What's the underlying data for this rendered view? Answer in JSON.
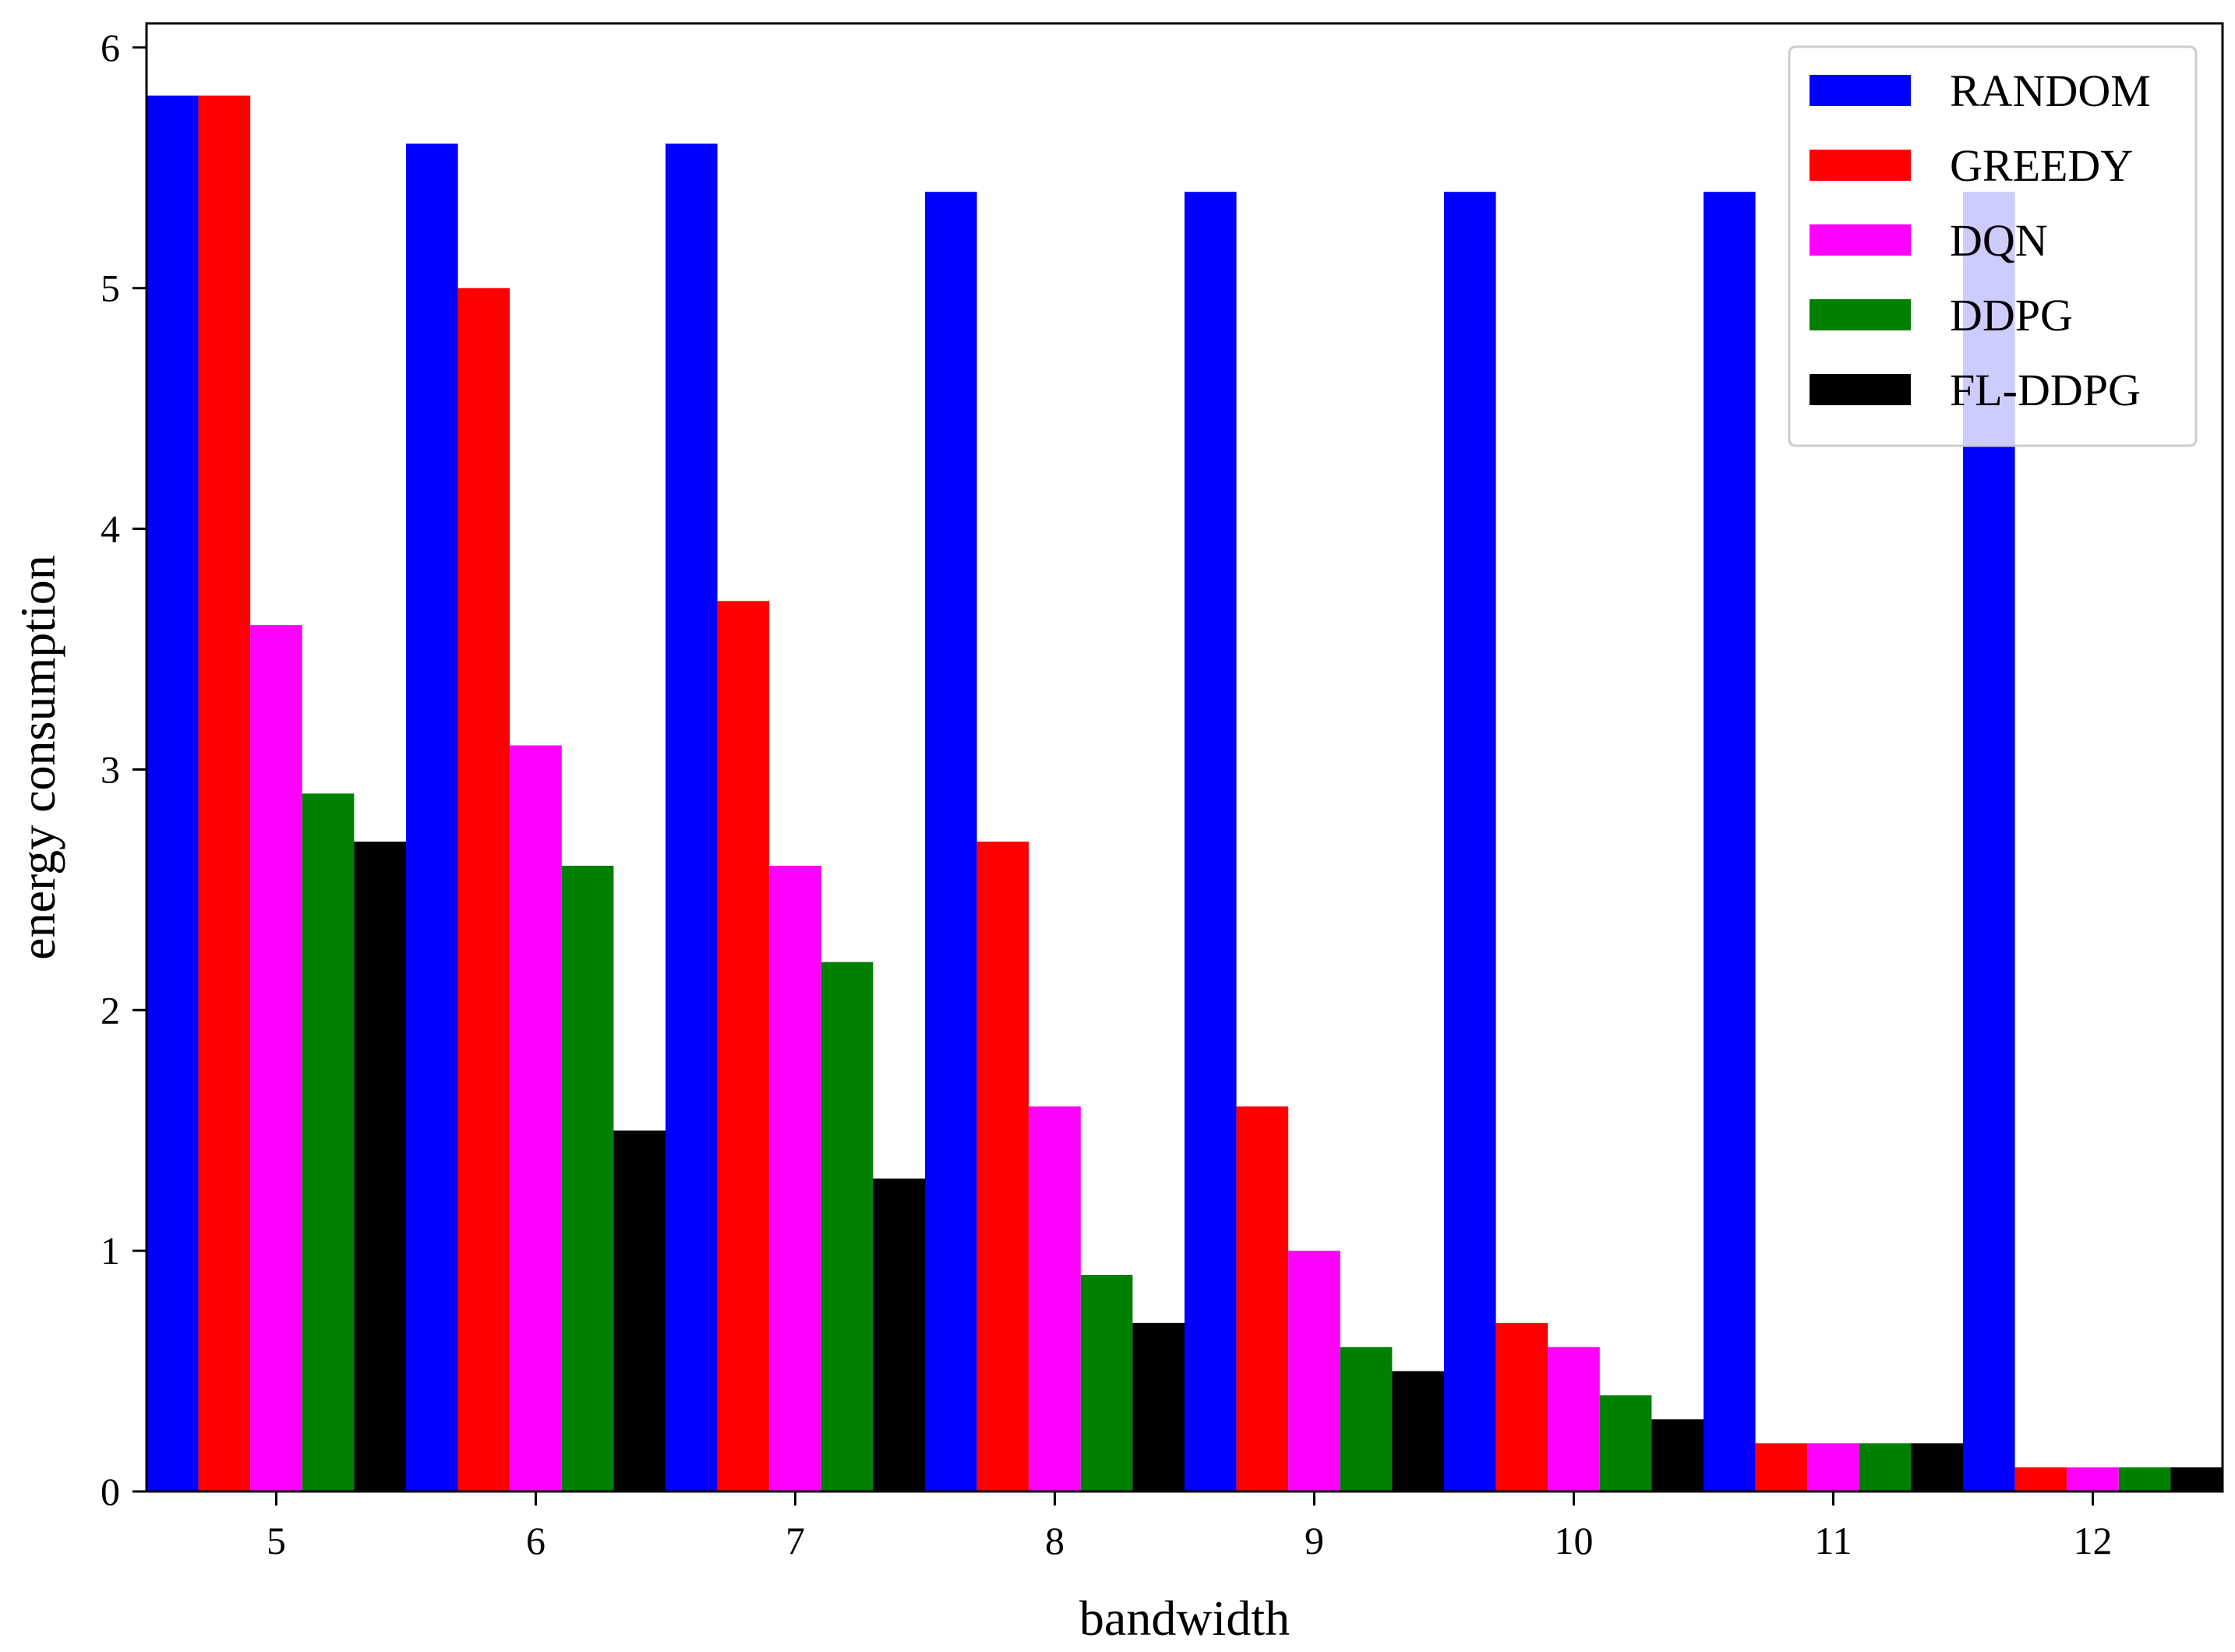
{
  "chart_data": {
    "type": "bar",
    "title": "",
    "xlabel": "bandwidth",
    "ylabel": "energy consumption",
    "categories": [
      "5",
      "6",
      "7",
      "8",
      "9",
      "10",
      "11",
      "12"
    ],
    "ylim": [
      0,
      6.1
    ],
    "yticks": [
      "0",
      "1",
      "2",
      "3",
      "4",
      "5",
      "6"
    ],
    "grid": false,
    "legend_position": "top-right",
    "series": [
      {
        "name": "RANDOM",
        "color": "#0000ff",
        "values": [
          5.8,
          5.6,
          5.6,
          5.4,
          5.4,
          5.4,
          5.4,
          5.4
        ]
      },
      {
        "name": "GREEDY",
        "color": "#ff0000",
        "values": [
          5.8,
          5.0,
          3.7,
          2.7,
          1.6,
          0.7,
          0.2,
          0.1
        ]
      },
      {
        "name": "DQN",
        "color": "#ff00ff",
        "values": [
          3.6,
          3.1,
          2.6,
          1.6,
          1.0,
          0.6,
          0.2,
          0.1
        ]
      },
      {
        "name": "DDPG",
        "color": "#008000",
        "values": [
          2.9,
          2.6,
          2.2,
          0.9,
          0.6,
          0.4,
          0.2,
          0.1
        ]
      },
      {
        "name": "FL-DDPG",
        "color": "#000000",
        "values": [
          2.7,
          1.5,
          1.3,
          0.7,
          0.5,
          0.3,
          0.2,
          0.1
        ]
      }
    ]
  }
}
